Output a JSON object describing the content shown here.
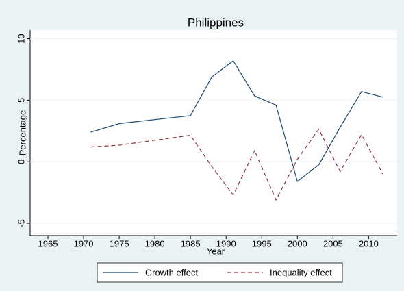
{
  "chart_data": {
    "type": "line",
    "title": "Philippines",
    "x_label": "Year",
    "y_label": "Percentage",
    "x": [
      1971,
      1975,
      1985,
      1988,
      1991,
      1994,
      1997,
      2000,
      2003,
      2006,
      2009,
      2012
    ],
    "series": [
      {
        "name": "Growth effect",
        "color": "#1a476f",
        "style": "solid",
        "values": [
          2.4,
          3.1,
          3.75,
          6.9,
          8.2,
          5.35,
          4.6,
          -1.6,
          -0.25,
          2.8,
          5.7,
          5.25
        ]
      },
      {
        "name": "Inequality effect",
        "color": "#90353b",
        "style": "dashed",
        "values": [
          1.2,
          1.35,
          2.15,
          -0.4,
          -2.7,
          0.9,
          -3.1,
          0.2,
          2.65,
          -0.8,
          2.2,
          -1.0
        ]
      }
    ],
    "xlim": [
      1962.5,
      2014
    ],
    "xticks": [
      1965,
      1970,
      1975,
      1980,
      1985,
      1990,
      1995,
      2000,
      2005,
      2010
    ],
    "ylim": [
      -6,
      10.7
    ],
    "yticks": [
      -5,
      0,
      5,
      10
    ],
    "grid": true,
    "legend": "bottom"
  }
}
